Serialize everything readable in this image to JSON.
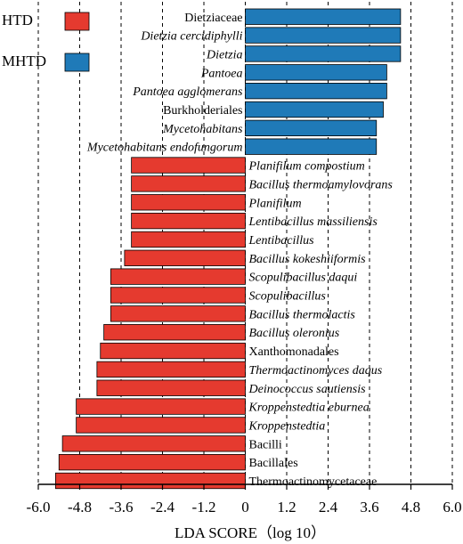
{
  "chart_data": {
    "type": "bar",
    "orientation": "horizontal",
    "xlabel": "LDA SCORE（log 10）",
    "xlim": [
      -6.0,
      6.0
    ],
    "xticks": [
      "-6.0",
      "-4.8",
      "-3.6",
      "-2.4",
      "-1.2",
      "0",
      "1.2",
      "2.4",
      "3.6",
      "4.8",
      "6.0"
    ],
    "grid": "vertical dashed",
    "legend": {
      "placement": "top-left",
      "entries": [
        {
          "name": "HTD",
          "color": "#e53a2f"
        },
        {
          "name": "MHTD",
          "color": "#1f7ab8"
        }
      ]
    },
    "bars": [
      {
        "label": "Dietziaceae",
        "value": 4.5,
        "group": "MHTD",
        "italic": false
      },
      {
        "label": "Dietzia cercidiphylli",
        "value": 4.5,
        "group": "MHTD",
        "italic": true
      },
      {
        "label": "Dietzia",
        "value": 4.5,
        "group": "MHTD",
        "italic": true
      },
      {
        "label": "Pantoea",
        "value": 4.1,
        "group": "MHTD",
        "italic": true
      },
      {
        "label": "Pantoea agglomerans",
        "value": 4.1,
        "group": "MHTD",
        "italic": true
      },
      {
        "label": "Burkholderiales",
        "value": 4.0,
        "group": "MHTD",
        "italic": false
      },
      {
        "label": "Mycetohabitans",
        "value": 3.8,
        "group": "MHTD",
        "italic": true
      },
      {
        "label": "Mycetohabitans endofungorum",
        "value": 3.8,
        "group": "MHTD",
        "italic": true
      },
      {
        "label": "Planifilum compostium",
        "value": -3.3,
        "group": "HTD",
        "italic": true
      },
      {
        "label": "Bacillus thermoamylovorans",
        "value": -3.3,
        "group": "HTD",
        "italic": true
      },
      {
        "label": "Planifilum",
        "value": -3.3,
        "group": "HTD",
        "italic": true
      },
      {
        "label": "Lentibacillus massiliensis",
        "value": -3.3,
        "group": "HTD",
        "italic": true
      },
      {
        "label": "Lentibacillus",
        "value": -3.3,
        "group": "HTD",
        "italic": true
      },
      {
        "label": "Bacillus kokeshiiformis",
        "value": -3.5,
        "group": "HTD",
        "italic": true
      },
      {
        "label": "Scopulibacillus daqui",
        "value": -3.9,
        "group": "HTD",
        "italic": true
      },
      {
        "label": "Scopulibacillus",
        "value": -3.9,
        "group": "HTD",
        "italic": true
      },
      {
        "label": "Bacillus thermolactis",
        "value": -3.9,
        "group": "HTD",
        "italic": true
      },
      {
        "label": "Bacillus oleronius",
        "value": -4.1,
        "group": "HTD",
        "italic": true
      },
      {
        "label": "Xanthomonadales",
        "value": -4.2,
        "group": "HTD",
        "italic": false
      },
      {
        "label": "Thermoactinomyces daqus",
        "value": -4.3,
        "group": "HTD",
        "italic": true
      },
      {
        "label": "Deinococcus sautiensis",
        "value": -4.3,
        "group": "HTD",
        "italic": true
      },
      {
        "label": "Kroppenstedtia eburnea",
        "value": -4.9,
        "group": "HTD",
        "italic": true
      },
      {
        "label": "Kroppenstedtia",
        "value": -4.9,
        "group": "HTD",
        "italic": true
      },
      {
        "label": "Bacilli",
        "value": -5.3,
        "group": "HTD",
        "italic": false
      },
      {
        "label": "Bacillales",
        "value": -5.4,
        "group": "HTD",
        "italic": false
      },
      {
        "label": "Thermoactinomycetaceae",
        "value": -5.5,
        "group": "HTD",
        "italic": false
      }
    ]
  }
}
